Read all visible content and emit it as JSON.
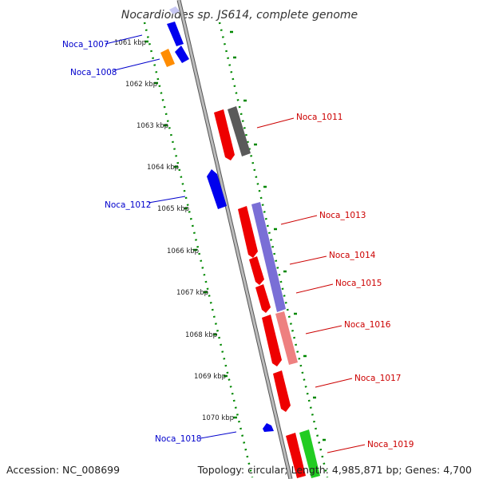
{
  "title": "Nocardioides sp. JS614, complete genome",
  "footer": {
    "accession": "Accession: NC_008699",
    "topology": "Topology: circular; Length: 4,985,871 bp; Genes: 4,700"
  },
  "ticks": [
    "1061 kbp",
    "1062 kbp",
    "1063 kbp",
    "1064 kbp",
    "1065 kbp",
    "1066 kbp",
    "1067 kbp",
    "1068 kbp",
    "1069 kbp",
    "1070 kbp"
  ],
  "genes": [
    {
      "label": "Noca_1007",
      "strand": "minus",
      "color": "#1010dd"
    },
    {
      "label": "Noca_1008",
      "strand": "minus",
      "color": "#1010dd"
    },
    {
      "label": "Noca_1011",
      "strand": "plus",
      "color": "#dd0000"
    },
    {
      "label": "Noca_1012",
      "strand": "minus",
      "color": "#1010dd"
    },
    {
      "label": "Noca_1013",
      "strand": "plus",
      "color": "#dd0000"
    },
    {
      "label": "Noca_1014",
      "strand": "plus",
      "color": "#dd0000"
    },
    {
      "label": "Noca_1015",
      "strand": "plus",
      "color": "#dd0000"
    },
    {
      "label": "Noca_1016",
      "strand": "plus",
      "color": "#dd0000"
    },
    {
      "label": "Noca_1017",
      "strand": "plus",
      "color": "#dd0000"
    },
    {
      "label": "Noca_1018",
      "strand": "minus",
      "color": "#1010dd"
    },
    {
      "label": "Noca_1019",
      "strand": "plus",
      "color": "#dd0000"
    }
  ],
  "colors": {
    "plus_strand": "#ee0000",
    "minus_strand": "#0000ee",
    "orf": "#ff8c00",
    "gray_feature": "#5a5a5a",
    "purple_feature": "#7a6fd6",
    "pink_feature": "#ee8080",
    "green_feature": "#22cc22",
    "dotted_track": "#008800",
    "backbone": "#999999"
  }
}
